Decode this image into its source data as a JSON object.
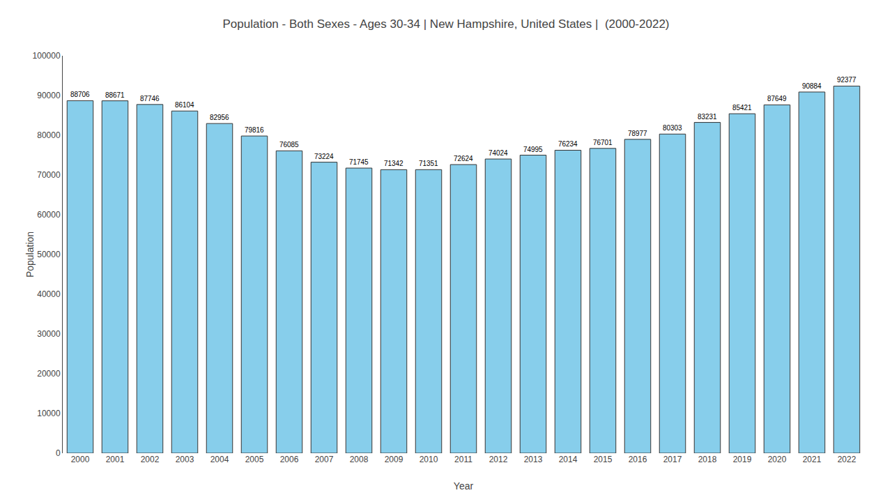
{
  "chart_data": {
    "type": "bar",
    "title": "Population - Both Sexes - Ages 30-34 | New Hampshire, United States |  (2000-2022)",
    "xlabel": "Year",
    "ylabel": "Population",
    "categories": [
      "2000",
      "2001",
      "2002",
      "2003",
      "2004",
      "2005",
      "2006",
      "2007",
      "2008",
      "2009",
      "2010",
      "2011",
      "2012",
      "2013",
      "2014",
      "2015",
      "2016",
      "2017",
      "2018",
      "2019",
      "2020",
      "2021",
      "2022"
    ],
    "values": [
      88706,
      88671,
      87746,
      86104,
      82956,
      79816,
      76085,
      73224,
      71745,
      71342,
      71351,
      72624,
      74024,
      74995,
      76234,
      76701,
      78977,
      80303,
      83231,
      85421,
      87649,
      90884,
      92377
    ],
    "color": "#87ceeb",
    "ylim": [
      0,
      100000
    ],
    "yticks": [
      0,
      10000,
      20000,
      30000,
      40000,
      50000,
      60000,
      70000,
      80000,
      90000,
      100000
    ],
    "grid": false,
    "data_labels": true
  }
}
